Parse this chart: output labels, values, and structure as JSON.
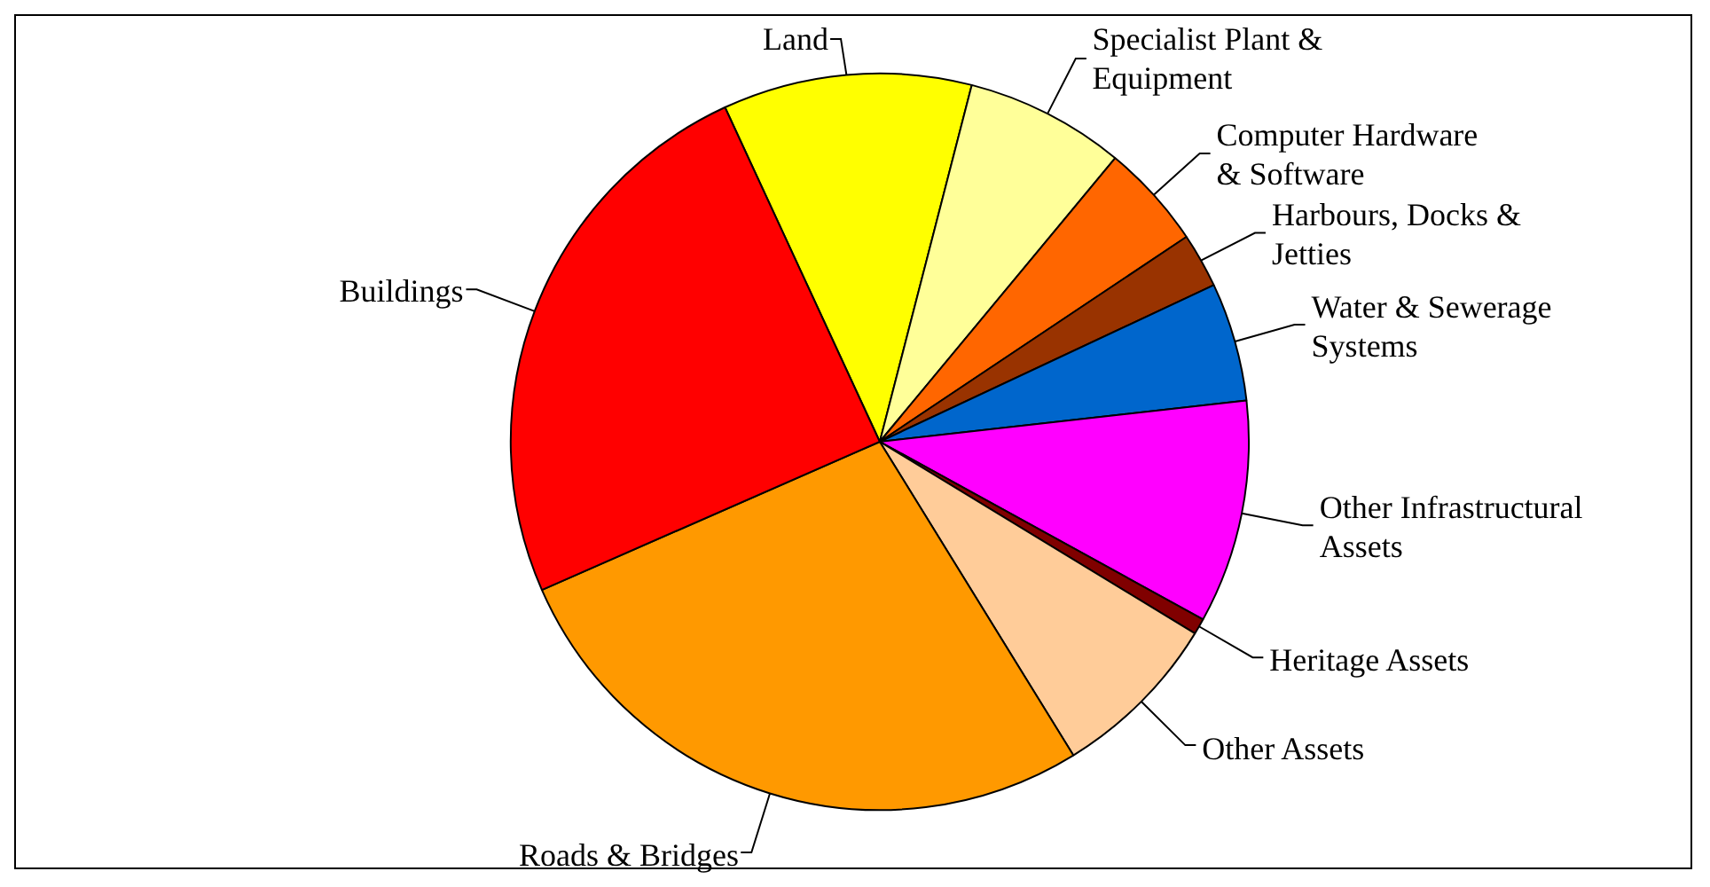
{
  "chart_data": {
    "type": "pie",
    "categories": [
      "Land",
      "Specialist Plant & Equipment",
      "Computer Hardware & Software",
      "Harbours, Docks & Jetties",
      "Water & Sewerage Systems",
      "Other Infrastructural Assets",
      "Heritage Assets",
      "Other Assets",
      "Roads & Bridges",
      "Buildings"
    ],
    "values": [
      10.9,
      7.0,
      4.6,
      2.4,
      5.2,
      9.8,
      0.7,
      7.5,
      27.2,
      24.7
    ],
    "colors": [
      "#ffff00",
      "#ffff99",
      "#ff6600",
      "#993300",
      "#0066cc",
      "#ff00ff",
      "#800000",
      "#ffcc99",
      "#ff9900",
      "#ff0000"
    ]
  }
}
